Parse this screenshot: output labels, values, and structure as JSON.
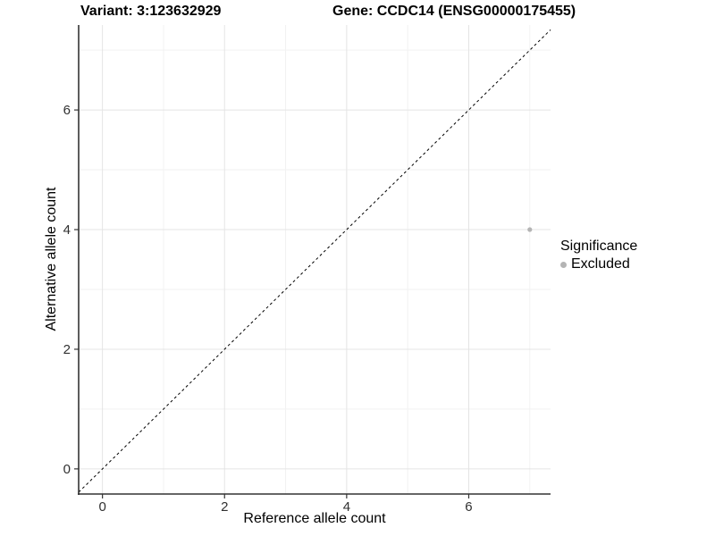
{
  "chart_data": {
    "type": "scatter",
    "title_left": "Variant: 3:123632929",
    "title_right": "Gene: CCDC14 (ENSG00000175455)",
    "xlabel": "Reference allele count",
    "ylabel": "Alternative allele count",
    "xlim": [
      -0.39,
      7.34
    ],
    "ylim": [
      -0.42,
      7.42
    ],
    "x_major_ticks": [
      0,
      2,
      4,
      6
    ],
    "y_major_ticks": [
      0,
      2,
      4,
      6
    ],
    "x_minor_ticks": [
      1,
      3,
      5,
      7
    ],
    "y_minor_ticks": [
      1,
      3,
      5,
      7
    ],
    "grid": true,
    "identity_line": {
      "equation": "y = x",
      "style": "dashed",
      "color": "#000000"
    },
    "series": [
      {
        "name": "Excluded",
        "color": "#b4b4b4",
        "points": [
          {
            "x": 7,
            "y": 4
          }
        ]
      }
    ],
    "legend": {
      "position": "right",
      "title": "Significance",
      "entries": [
        {
          "label": "Excluded",
          "color": "#b4b4b4"
        }
      ]
    }
  },
  "colors": {
    "background": "#ffffff",
    "grid_major": "#e4e4e4",
    "grid_minor": "#f2f2f2",
    "axis_line": "#333333",
    "tick_mark": "#333333",
    "tick_label": "#303030",
    "title_text": "#000000",
    "point": "#b4b4b4"
  }
}
